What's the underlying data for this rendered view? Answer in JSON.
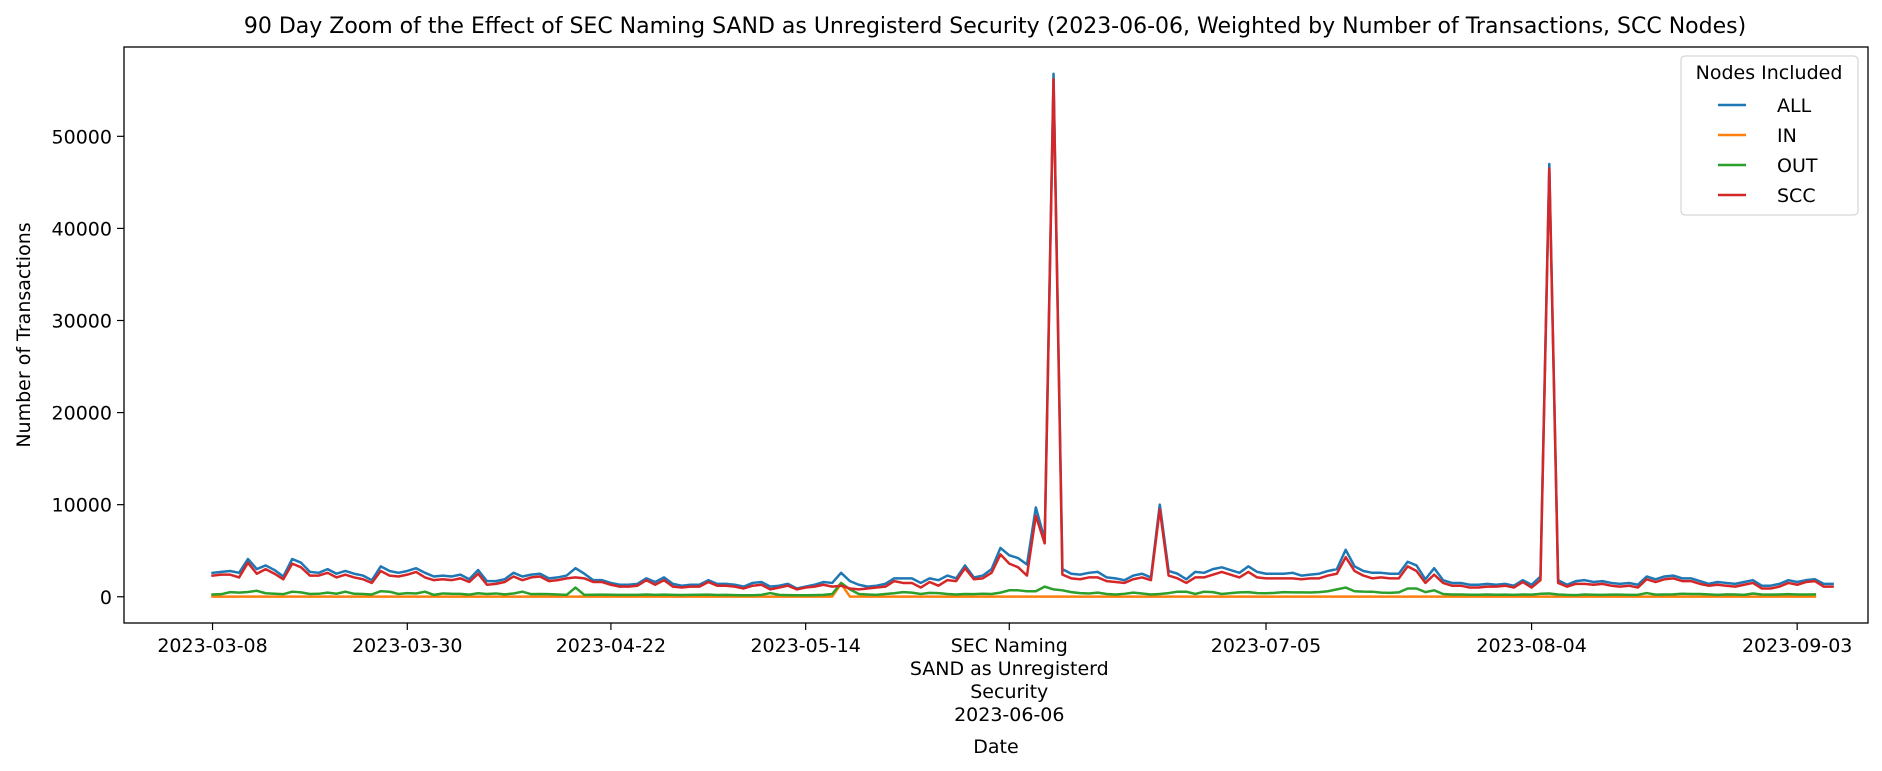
{
  "chart_data": {
    "type": "line",
    "title": "90 Day Zoom of the Effect of SEC Naming SAND as Unregisterd Security (2023-06-06, Weighted by Number of Transactions, SCC Nodes)",
    "xlabel": "Date",
    "ylabel": "Number of Transactions",
    "xlim": [
      "2023-02-26",
      "2023-09-11"
    ],
    "ylim": [
      -2850,
      59700
    ],
    "grid": false,
    "legend": {
      "title": "Nodes Included",
      "location": "upper right"
    },
    "x_ticks": [
      {
        "label": "2023-03-08",
        "date": "2023-03-08"
      },
      {
        "label": "2023-03-30",
        "date": "2023-03-30"
      },
      {
        "label": "2023-04-22",
        "date": "2023-04-22"
      },
      {
        "label": "2023-05-14",
        "date": "2023-05-14"
      },
      {
        "label": "SEC Naming",
        "date": "2023-06-06",
        "lines": [
          "SEC Naming",
          "SAND as Unregisterd",
          "Security",
          "2023-06-06"
        ]
      },
      {
        "label": "2023-07-05",
        "date": "2023-07-05"
      },
      {
        "label": "2023-08-04",
        "date": "2023-08-04"
      },
      {
        "label": "2023-09-03",
        "date": "2023-09-03"
      }
    ],
    "y_ticks": [
      0,
      10000,
      20000,
      30000,
      40000,
      50000
    ],
    "x_start": "2023-03-08",
    "x_step_days": 1,
    "series": [
      {
        "name": "ALL",
        "color": "#1f77b4",
        "values": [
          2600,
          2700,
          2800,
          2600,
          4100,
          3000,
          3400,
          2900,
          2200,
          4100,
          3700,
          2700,
          2600,
          3000,
          2500,
          2800,
          2500,
          2300,
          1800,
          3300,
          2800,
          2600,
          2800,
          3100,
          2600,
          2200,
          2300,
          2200,
          2400,
          1900,
          2900,
          1700,
          1700,
          1900,
          2600,
          2200,
          2400,
          2500,
          2000,
          2100,
          2300,
          3100,
          2500,
          1800,
          1800,
          1500,
          1300,
          1300,
          1400,
          2000,
          1600,
          2100,
          1400,
          1200,
          1300,
          1300,
          1800,
          1400,
          1400,
          1300,
          1100,
          1500,
          1600,
          1100,
          1200,
          1400,
          900,
          1100,
          1300,
          1600,
          1500,
          2600,
          1700,
          1300,
          1100,
          1200,
          1400,
          2000,
          2000,
          2000,
          1500,
          2000,
          1800,
          2300,
          2000,
          3400,
          2100,
          2300,
          3000,
          5300,
          4500,
          4200,
          3500,
          9700,
          6200,
          56800,
          3000,
          2500,
          2400,
          2600,
          2700,
          2100,
          2000,
          1800,
          2300,
          2500,
          2100,
          10000,
          2800,
          2500,
          1900,
          2700,
          2600,
          3000,
          3200,
          2900,
          2600,
          3300,
          2700,
          2500,
          2500,
          2500,
          2600,
          2300,
          2400,
          2500,
          2800,
          3000,
          5100,
          3300,
          2800,
          2600,
          2600,
          2500,
          2500,
          3800,
          3400,
          1900,
          3100,
          1800,
          1500,
          1500,
          1300,
          1300,
          1400,
          1300,
          1400,
          1200,
          1800,
          1300,
          2200,
          47000,
          1800,
          1300,
          1700,
          1800,
          1600,
          1700,
          1500,
          1400,
          1500,
          1300,
          2200,
          1900,
          2200,
          2300,
          2000,
          2000,
          1700,
          1400,
          1600,
          1500,
          1400,
          1600,
          1800,
          1200,
          1200,
          1400,
          1800,
          1600,
          1800,
          1900,
          1400,
          1400
        ]
      },
      {
        "name": "IN",
        "color": "#ff7f0e",
        "values": [
          20,
          20,
          20,
          20,
          20,
          20,
          20,
          20,
          20,
          20,
          20,
          20,
          20,
          20,
          20,
          20,
          20,
          20,
          20,
          20,
          20,
          20,
          20,
          20,
          20,
          20,
          20,
          20,
          20,
          20,
          20,
          20,
          20,
          20,
          20,
          20,
          20,
          20,
          20,
          20,
          20,
          20,
          20,
          20,
          20,
          20,
          20,
          20,
          20,
          20,
          20,
          20,
          20,
          20,
          20,
          20,
          20,
          20,
          20,
          20,
          20,
          20,
          20,
          20,
          20,
          20,
          20,
          20,
          20,
          20,
          20,
          1400,
          20,
          20,
          20,
          20,
          20,
          20,
          20,
          20,
          20,
          20,
          20,
          20,
          20,
          20,
          20,
          20,
          20,
          20,
          20,
          20,
          20,
          20,
          20,
          20,
          20,
          20,
          20,
          20,
          20,
          20,
          20,
          20,
          20,
          20,
          20,
          20,
          20,
          20,
          20,
          20,
          20,
          20,
          20,
          20,
          20,
          20,
          20,
          20,
          20,
          20,
          20,
          20,
          20,
          20,
          20,
          20,
          20,
          20,
          20,
          20,
          20,
          20,
          20,
          20,
          20,
          20,
          20,
          20,
          20,
          20,
          20,
          20,
          20,
          20,
          20,
          20,
          20,
          20,
          20,
          20,
          20,
          20,
          20,
          20,
          20,
          20,
          20,
          20,
          20,
          20,
          20,
          20,
          20,
          20,
          20,
          20,
          20,
          20,
          20,
          20,
          20,
          20,
          20,
          20,
          20,
          20,
          20,
          20,
          20,
          20
        ]
      },
      {
        "name": "OUT",
        "color": "#2ca02c",
        "values": [
          250,
          280,
          500,
          450,
          520,
          650,
          380,
          320,
          280,
          550,
          480,
          300,
          320,
          450,
          330,
          550,
          320,
          300,
          250,
          600,
          550,
          300,
          400,
          350,
          550,
          200,
          360,
          320,
          310,
          230,
          380,
          300,
          360,
          260,
          350,
          550,
          280,
          300,
          280,
          250,
          200,
          1000,
          200,
          220,
          230,
          220,
          210,
          200,
          200,
          240,
          200,
          230,
          200,
          190,
          200,
          220,
          230,
          190,
          200,
          180,
          170,
          160,
          200,
          400,
          200,
          180,
          160,
          160,
          180,
          200,
          300,
          1500,
          800,
          300,
          250,
          200,
          300,
          380,
          500,
          450,
          300,
          420,
          400,
          300,
          250,
          300,
          280,
          320,
          300,
          450,
          700,
          700,
          600,
          600,
          1100,
          800,
          700,
          500,
          400,
          350,
          450,
          300,
          250,
          320,
          450,
          350,
          240,
          300,
          400,
          550,
          550,
          300,
          550,
          500,
          300,
          400,
          480,
          500,
          400,
          380,
          420,
          500,
          470,
          480,
          460,
          500,
          600,
          800,
          1000,
          600,
          560,
          550,
          450,
          420,
          480,
          900,
          900,
          500,
          700,
          300,
          250,
          250,
          220,
          220,
          240,
          220,
          230,
          200,
          250,
          230,
          320,
          350,
          250,
          200,
          180,
          250,
          220,
          200,
          230,
          230,
          200,
          210,
          400,
          230,
          250,
          260,
          330,
          300,
          300,
          260,
          200,
          260,
          240,
          200,
          350,
          250,
          230,
          250,
          280,
          250,
          240,
          250
        ]
      },
      {
        "name": "SCC",
        "color": "#d62728",
        "values": [
          2300,
          2400,
          2400,
          2100,
          3700,
          2500,
          3000,
          2500,
          1900,
          3600,
          3200,
          2300,
          2300,
          2600,
          2100,
          2400,
          2100,
          1900,
          1500,
          2800,
          2300,
          2200,
          2400,
          2700,
          2100,
          1800,
          1900,
          1800,
          2000,
          1600,
          2500,
          1300,
          1400,
          1600,
          2200,
          1800,
          2100,
          2200,
          1700,
          1800,
          2000,
          2100,
          2000,
          1600,
          1600,
          1300,
          1100,
          1100,
          1200,
          1800,
          1300,
          1800,
          1100,
          1000,
          1100,
          1100,
          1600,
          1200,
          1200,
          1100,
          900,
          1200,
          1300,
          800,
          1000,
          1200,
          800,
          1000,
          1100,
          1300,
          1100,
          1200,
          900,
          800,
          900,
          1000,
          1100,
          1700,
          1500,
          1500,
          1000,
          1600,
          1200,
          1800,
          1700,
          3100,
          1900,
          2000,
          2600,
          4600,
          3600,
          3200,
          2300,
          8800,
          5800,
          56200,
          2400,
          2000,
          1900,
          2100,
          2100,
          1700,
          1600,
          1500,
          1900,
          2100,
          1800,
          9500,
          2300,
          2000,
          1500,
          2100,
          2100,
          2400,
          2700,
          2400,
          2100,
          2700,
          2100,
          2000,
          2000,
          2000,
          2000,
          1900,
          2000,
          2000,
          2300,
          2500,
          4300,
          2800,
          2300,
          2000,
          2100,
          2000,
          2000,
          3300,
          2800,
          1500,
          2400,
          1500,
          1200,
          1200,
          1000,
          1000,
          1100,
          1100,
          1200,
          1000,
          1600,
          1000,
          1800,
          46500,
          1500,
          1100,
          1400,
          1400,
          1300,
          1400,
          1200,
          1100,
          1200,
          1000,
          1900,
          1600,
          1900,
          2000,
          1700,
          1700,
          1400,
          1200,
          1300,
          1200,
          1100,
          1300,
          1500,
          900,
          900,
          1100,
          1500,
          1300,
          1600,
          1700,
          1100,
          1100
        ]
      }
    ]
  }
}
